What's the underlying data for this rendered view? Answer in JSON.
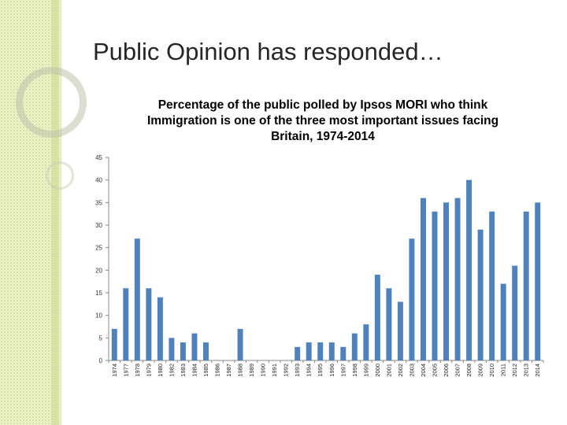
{
  "slide": {
    "title": "Public Opinion has responded…"
  },
  "colors": {
    "bar": "#4f81bd",
    "axis": "#888888",
    "sidebar": "#e9f0c6"
  },
  "chart_data": {
    "type": "bar",
    "title": "Percentage of the public polled by Ipsos MORI who think Immigration is one of the three most important issues facing Britain, 1974-2014",
    "xlabel": "",
    "ylabel": "",
    "ylim": [
      0,
      45
    ],
    "yticks": [
      "0",
      "5",
      "10",
      "15",
      "20",
      "25",
      "30",
      "35",
      "40",
      "45"
    ],
    "grid": false,
    "categories": [
      "1974",
      "1977",
      "1978",
      "1979",
      "1980",
      "1982",
      "1983",
      "1984",
      "1985",
      "1986",
      "1987",
      "1988",
      "1989",
      "1990",
      "1991",
      "1992",
      "1993",
      "1994",
      "1995",
      "1996",
      "1997",
      "1998",
      "1999",
      "2000",
      "2001",
      "2002",
      "2003",
      "2004",
      "2005",
      "2006",
      "2007",
      "2008",
      "2009",
      "2010",
      "2011",
      "2012",
      "2013",
      "2014"
    ],
    "values": [
      7,
      16,
      27,
      16,
      14,
      5,
      4,
      6,
      4,
      0,
      0,
      7,
      0,
      0,
      0,
      0,
      3,
      4,
      4,
      4,
      3,
      6,
      8,
      19,
      16,
      13,
      27,
      36,
      33,
      35,
      36,
      40,
      29,
      33,
      17,
      21,
      33,
      35
    ]
  }
}
